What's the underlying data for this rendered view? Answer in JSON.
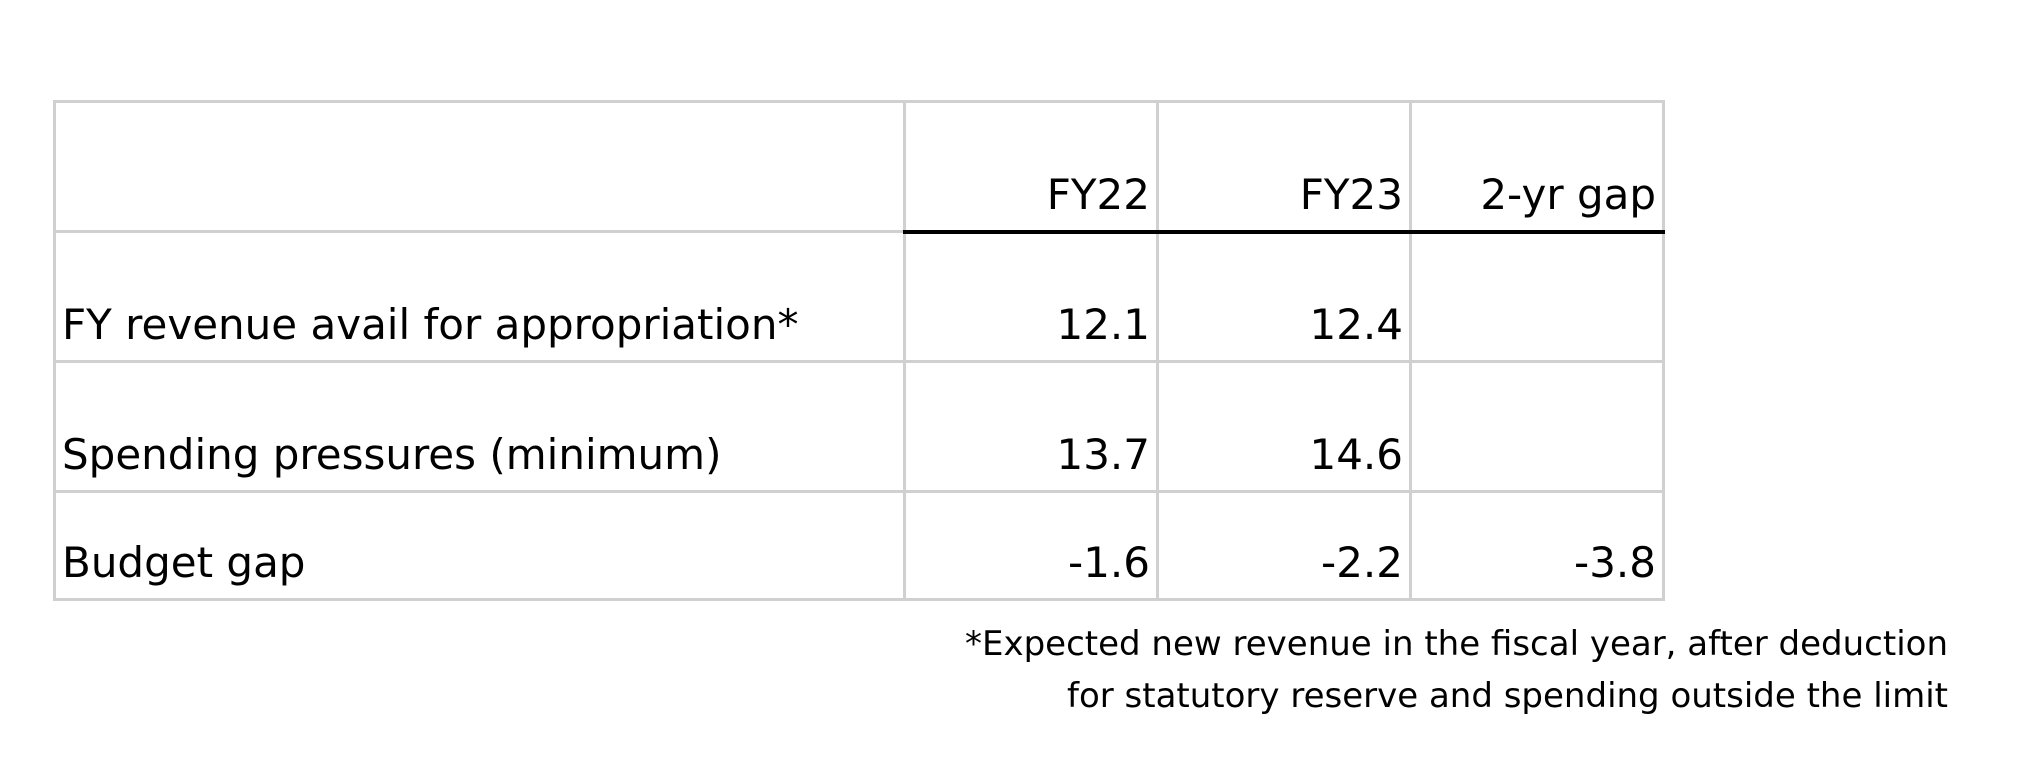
{
  "table": {
    "columns": [
      "",
      "FY22",
      "FY23",
      "2-yr gap"
    ],
    "rows": [
      {
        "label": "FY revenue avail for appropriation*",
        "fy22": "12.1",
        "fy23": "12.4",
        "gap": ""
      },
      {
        "label": "Spending pressures (minimum)",
        "fy22": "13.7",
        "fy23": "14.6",
        "gap": ""
      },
      {
        "label": "Budget gap",
        "fy22": "-1.6",
        "fy23": "-2.2",
        "gap": "-3.8"
      }
    ]
  },
  "footnote": {
    "line1": "*Expected new revenue in the fiscal year, after deduction",
    "line2": "for statutory reserve and spending outside the limit"
  }
}
